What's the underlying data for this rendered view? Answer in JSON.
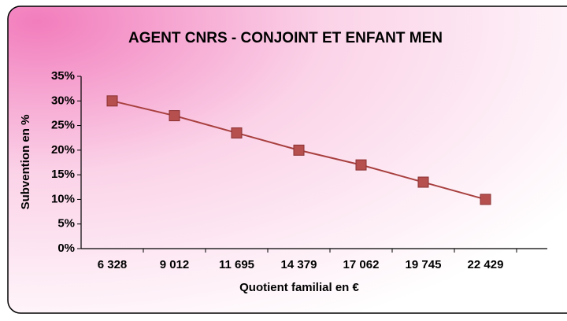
{
  "chart_data": {
    "type": "line",
    "title": "AGENT CNRS - CONJOINT ET ENFANT MEN",
    "x_label": "Quotient familial en €",
    "y_label": "Subvention en %",
    "categories": [
      "6 328",
      "9 012",
      "11 695",
      "14 379",
      "17 062",
      "19 745",
      "22 429"
    ],
    "series": [
      {
        "name": "Subvention",
        "color": "#a8403f",
        "values": [
          30,
          27,
          23.5,
          20,
          17,
          13.5,
          10
        ]
      }
    ],
    "ylim": [
      0,
      35
    ],
    "yticks": [
      {
        "value": 0,
        "label": "0%"
      },
      {
        "value": 5,
        "label": "5%"
      },
      {
        "value": 10,
        "label": "10%"
      },
      {
        "value": 15,
        "label": "15%"
      },
      {
        "value": 20,
        "label": "20%"
      },
      {
        "value": 25,
        "label": "25%"
      },
      {
        "value": 30,
        "label": "30%"
      },
      {
        "value": 35,
        "label": "35%"
      }
    ],
    "grid": false
  }
}
